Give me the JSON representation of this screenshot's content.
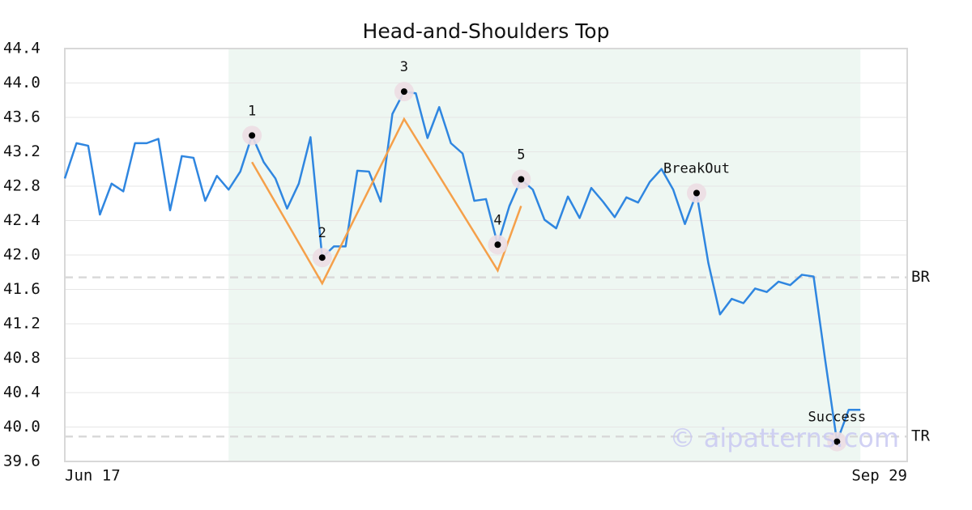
{
  "chart_data": {
    "type": "line",
    "title": "Head-and-Shoulders Top",
    "x": [
      0,
      1,
      2,
      3,
      4,
      5,
      6,
      7,
      8,
      9,
      10,
      11,
      12,
      13,
      14,
      15,
      16,
      17,
      18,
      19,
      20,
      21,
      22,
      23,
      24,
      25,
      26,
      27,
      28,
      29,
      30,
      31,
      32,
      33,
      34,
      35,
      36,
      37,
      38,
      39,
      40,
      41,
      42,
      43,
      44,
      45,
      46,
      47,
      48,
      49,
      50,
      51,
      52,
      53,
      54,
      55,
      56,
      57,
      58,
      59,
      60,
      61,
      62,
      63,
      64,
      65,
      66,
      67,
      68
    ],
    "values": [
      42.89,
      43.3,
      43.27,
      42.47,
      42.83,
      42.74,
      43.3,
      43.3,
      43.35,
      42.52,
      43.15,
      43.13,
      42.63,
      42.92,
      42.76,
      42.97,
      43.39,
      43.08,
      42.89,
      42.54,
      42.83,
      43.37,
      41.97,
      42.1,
      42.1,
      42.98,
      42.97,
      42.62,
      43.64,
      43.9,
      43.88,
      43.36,
      43.72,
      43.3,
      43.18,
      42.63,
      42.65,
      42.12,
      42.57,
      42.88,
      42.76,
      42.41,
      42.31,
      42.68,
      42.43,
      42.78,
      42.62,
      42.44,
      42.67,
      42.61,
      42.85,
      43.0,
      42.76,
      42.36,
      42.72,
      41.91,
      41.31,
      41.49,
      41.44,
      41.61,
      41.57,
      41.69,
      41.65,
      41.77,
      41.75,
      40.77,
      39.83,
      40.2,
      40.2
    ],
    "color": "#2f86e0",
    "pattern": {
      "x": [
        16,
        22,
        29,
        37,
        39
      ],
      "values": [
        43.08,
        41.67,
        43.58,
        41.82,
        42.57
      ],
      "color": "#f5a04a"
    },
    "points": [
      {
        "label": "1",
        "x": 16,
        "y": 43.39
      },
      {
        "label": "2",
        "x": 22,
        "y": 41.97
      },
      {
        "label": "3",
        "x": 29,
        "y": 43.9
      },
      {
        "label": "4",
        "x": 37,
        "y": 42.12
      },
      {
        "label": "5",
        "x": 39,
        "y": 42.88
      },
      {
        "label": "BreakOut",
        "x": 54,
        "y": 42.72
      },
      {
        "label": "Success",
        "x": 66,
        "y": 39.83
      }
    ],
    "hlines": [
      {
        "label": "BR",
        "value": 41.74
      },
      {
        "label": "TR",
        "value": 39.89
      }
    ],
    "shade": [
      14,
      68
    ],
    "watermark": "© aipatterns.com",
    "xlim": [
      0,
      72
    ],
    "xticks": [
      {
        "value": 0,
        "label": "Jun 17"
      },
      {
        "value": 72,
        "label": "Sep 29"
      }
    ],
    "ylim": [
      39.6,
      44.4
    ],
    "yticks": [
      {
        "value": 39.6,
        "label": "39.6"
      },
      {
        "value": 40,
        "label": "40.0"
      },
      40.4,
      40.8,
      41.2,
      41.6,
      {
        "value": 42,
        "label": "42.0"
      },
      42.4,
      42.8,
      43.2,
      43.6,
      {
        "value": 44,
        "label": "44.0"
      },
      44.4
    ],
    "grid": true
  }
}
